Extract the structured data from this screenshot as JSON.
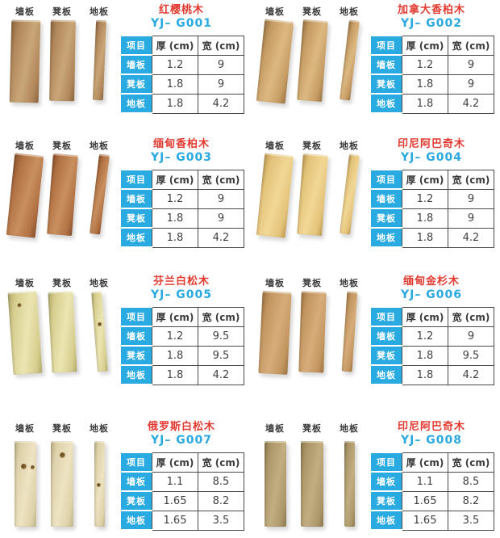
{
  "board_labels": [
    "墙板",
    "凳板",
    "地板"
  ],
  "table_headers": {
    "item": "项目",
    "thickness": "厚 (cm)",
    "width": "宽 (cm)"
  },
  "colors": {
    "title_red": "#e23a30",
    "model_blue": "#2aa9e0",
    "cyan_cell": "#29abe2",
    "table_border": "#4a4a4a",
    "background": "#ffffff"
  },
  "products": [
    {
      "name": "红樱桃木",
      "model": "YJ– G001",
      "wood_style": "--w1:#c9a678;--w2:#b1875a;--w3:#8b6541",
      "rows": [
        {
          "label": "墙板",
          "thickness": "1.2",
          "width": "9"
        },
        {
          "label": "凳板",
          "thickness": "1.8",
          "width": "9"
        },
        {
          "label": "地板",
          "thickness": "1.8",
          "width": "4.2"
        }
      ]
    },
    {
      "name": "加拿大香柏木",
      "model": "YJ– G002",
      "wood_style": "--w1:#dcb981;--w2:#c59b63;--w3:#9a7545",
      "rows": [
        {
          "label": "墙板",
          "thickness": "1.2",
          "width": "9"
        },
        {
          "label": "凳板",
          "thickness": "1.8",
          "width": "9"
        },
        {
          "label": "地板",
          "thickness": "1.8",
          "width": "4.2"
        }
      ]
    },
    {
      "name": "缅甸香柏木",
      "model": "YJ– G003",
      "wood_style": "--w1:#c9905f;--w2:#b17143;--w3:#88502d",
      "rows": [
        {
          "label": "墙板",
          "thickness": "1.2",
          "width": "9"
        },
        {
          "label": "凳板",
          "thickness": "1.8",
          "width": "9"
        },
        {
          "label": "地板",
          "thickness": "1.8",
          "width": "4.2"
        }
      ]
    },
    {
      "name": "印尼阿巴奇木",
      "model": "YJ– G004",
      "wood_style": "--w1:#f1d795;--w2:#e4c37a;--w3:#bd9a54",
      "rows": [
        {
          "label": "墙板",
          "thickness": "1.2",
          "width": "9"
        },
        {
          "label": "凳板",
          "thickness": "1.8",
          "width": "9"
        },
        {
          "label": "地板",
          "thickness": "1.8",
          "width": "4.2"
        }
      ]
    },
    {
      "name": "芬兰白松木",
      "model": "YJ– G005",
      "wood_style": "--w1:#ebe5b2;--w2:#d7ce8f;--w3:#b1a96b",
      "rows": [
        {
          "label": "墙板",
          "thickness": "1.2",
          "width": "9.5"
        },
        {
          "label": "凳板",
          "thickness": "1.8",
          "width": "9.5"
        },
        {
          "label": "地板",
          "thickness": "1.8",
          "width": "4.2"
        }
      ]
    },
    {
      "name": "缅甸金杉木",
      "model": "YJ– G006",
      "wood_style": "--w1:#d6ac7a;--w2:#c39660;--w3:#9d7442",
      "rows": [
        {
          "label": "墙板",
          "thickness": "1.2",
          "width": "9"
        },
        {
          "label": "凳板",
          "thickness": "1.8",
          "width": "9.5"
        },
        {
          "label": "地板",
          "thickness": "1.8",
          "width": "4.2"
        }
      ]
    },
    {
      "name": "俄罗斯白松木",
      "model": "YJ– G007",
      "wood_style": "--w1:#eee3c2;--w2:#ded2aa;--w3:#c0b389",
      "rows": [
        {
          "label": "墙板",
          "thickness": "1.1",
          "width": "8.5"
        },
        {
          "label": "凳板",
          "thickness": "1.65",
          "width": "8.2"
        },
        {
          "label": "地板",
          "thickness": "1.65",
          "width": "3.5"
        }
      ]
    },
    {
      "name": "印尼阿巴奇木",
      "model": "YJ– G008",
      "wood_style": "--w1:#c1ae81;--w2:#ac9769;--w3:#8b784f",
      "rows": [
        {
          "label": "墙板",
          "thickness": "1.1",
          "width": "8.5"
        },
        {
          "label": "凳板",
          "thickness": "1.65",
          "width": "8.2"
        },
        {
          "label": "地板",
          "thickness": "1.65",
          "width": "3.5"
        }
      ]
    }
  ]
}
